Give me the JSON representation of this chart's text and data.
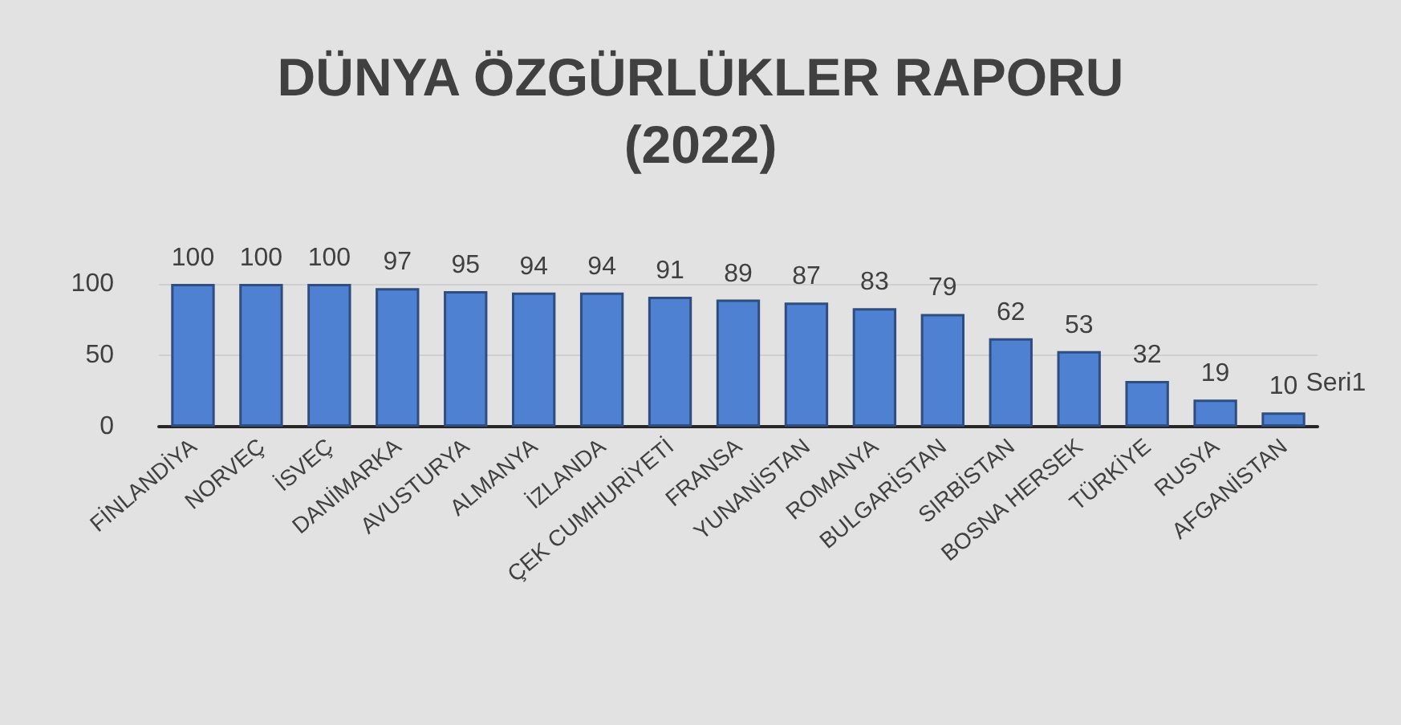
{
  "chart_data": {
    "type": "bar",
    "title": "DÜNYA ÖZGÜRLÜKLER RAPORU\n(2022)",
    "categories": [
      "FİNLANDİYA",
      "NORVEÇ",
      "İSVEÇ",
      "DANİMARKA",
      "AVUSTURYA",
      "ALMANYA",
      "İZLANDA",
      "ÇEK CUMHURİYETİ",
      "FRANSA",
      "YUNANİSTAN",
      "ROMANYA",
      "BULGARİSTAN",
      "SIRBİSTAN",
      "BOSNA HERSEK",
      "TÜRKİYE",
      "RUSYA",
      "AFGANİSTAN"
    ],
    "series": [
      {
        "name": "Seri1",
        "color": "#4f81d3",
        "values": [
          100,
          100,
          100,
          97,
          95,
          94,
          94,
          91,
          89,
          87,
          83,
          79,
          62,
          53,
          32,
          19,
          10
        ]
      }
    ],
    "ylim": [
      0,
      100
    ],
    "yticks": [
      0,
      50,
      100
    ],
    "grid": "y",
    "data_labels": true
  }
}
